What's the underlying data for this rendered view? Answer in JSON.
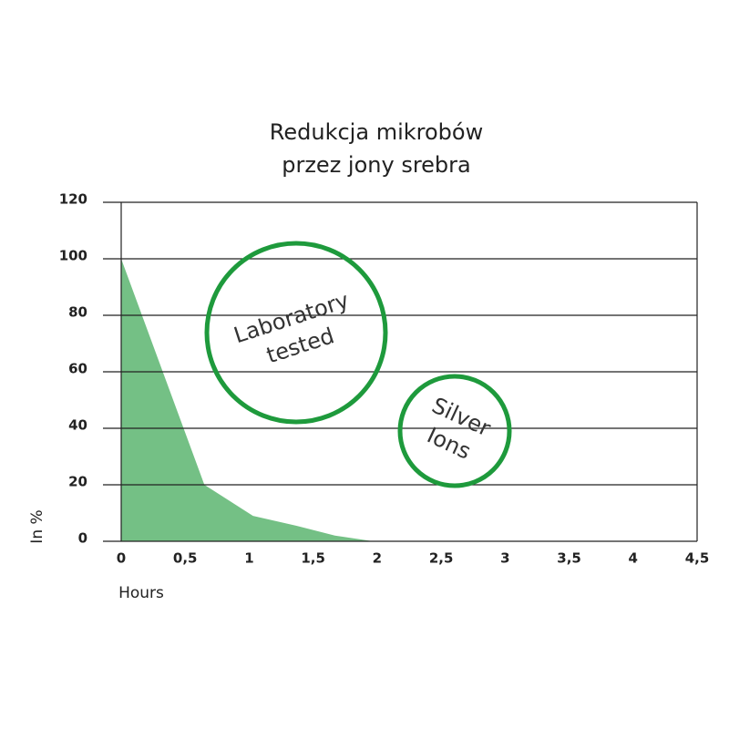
{
  "chart_data": {
    "type": "area",
    "title": [
      "Redukcja mikrobów",
      "przez jony srebra"
    ],
    "x_label": "Hours",
    "y_label": "In %",
    "x": [
      0,
      0.65,
      1.03,
      1.37,
      1.67,
      1.97
    ],
    "values": [
      100,
      20,
      9,
      5.5,
      2,
      0
    ],
    "color": "#74c085",
    "xlim": [
      0,
      4.5
    ],
    "xticks": [
      0,
      {
        "value": 0.5,
        "label": "0,5"
      },
      1,
      {
        "value": 1.5,
        "label": "1,5"
      },
      2,
      {
        "value": 2.5,
        "label": "2,5"
      },
      3,
      {
        "value": 3.5,
        "label": "3,5"
      },
      4,
      {
        "value": 4.5,
        "label": "4,5"
      }
    ],
    "ylim": [
      0,
      120
    ],
    "yticks": [
      0,
      20,
      40,
      60,
      80,
      100,
      120
    ],
    "grid": true,
    "annotations": [
      {
        "lines": [
          "Laboratory",
          "tested"
        ]
      },
      {
        "lines": [
          "Silver",
          "Ions"
        ]
      }
    ],
    "annotation_color": "#1e9a3c"
  }
}
